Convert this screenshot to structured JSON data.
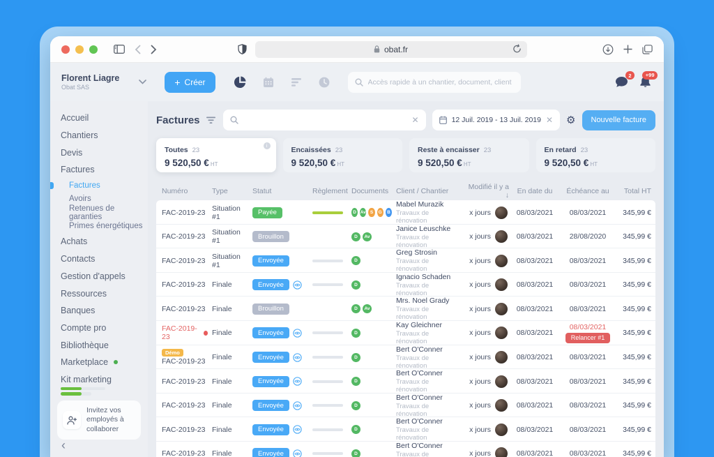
{
  "browser": {
    "url": "obat.fr"
  },
  "appbar": {
    "user_name": "Florent Liagre",
    "company": "Obat SAS",
    "create_plus": "+",
    "create_label": "Créer",
    "search_placeholder": "Accès rapide à un chantier, document, client ...",
    "chat_badge": "2",
    "bell_badge": "+99"
  },
  "sidebar": {
    "items": [
      {
        "label": "Accueil"
      },
      {
        "label": "Chantiers"
      },
      {
        "label": "Devis"
      },
      {
        "label": "Factures"
      },
      {
        "label": "Factures",
        "sub": true,
        "active": true
      },
      {
        "label": "Avoirs",
        "sub": true
      },
      {
        "label": "Retenues de garanties",
        "sub": true
      },
      {
        "label": "Primes énergétiques",
        "sub": true
      },
      {
        "label": "Achats"
      },
      {
        "label": "Contacts"
      },
      {
        "label": "Gestion d'appels"
      },
      {
        "label": "Ressources"
      },
      {
        "label": "Banques"
      },
      {
        "label": "Compte pro"
      },
      {
        "label": "Bibliothèque"
      },
      {
        "label": "Marketplace",
        "dot": true
      },
      {
        "label": "Kit marketing",
        "progress": true
      }
    ],
    "invite_text": "Invitez vos employés à collaborer"
  },
  "header": {
    "title": "Factures",
    "date_range": "12 Juil. 2019 - 13 Juil. 2019",
    "new_button": "Nouvelle facture"
  },
  "cards": [
    {
      "label": "Toutes",
      "count": "23",
      "amount": "9 520,50 €",
      "unit": "HT",
      "active": true
    },
    {
      "label": "Encaissées",
      "count": "23",
      "amount": "9 520,50 €",
      "unit": "HT"
    },
    {
      "label": "Reste à encaisser",
      "count": "23",
      "amount": "9 520,50 €",
      "unit": "HT"
    },
    {
      "label": "En retard",
      "count": "23",
      "amount": "9 520,50 €",
      "unit": "HT"
    }
  ],
  "table": {
    "headers": [
      "Numéro",
      "Type",
      "Statut",
      "Règlement",
      "Documents",
      "Client / Chantier",
      "Modifié il y a",
      "En date du",
      "Échéance au",
      "Total HT"
    ],
    "sort_index": 6,
    "sort_arrow": "↓",
    "rows": [
      {
        "numero": "FAC-2019-23",
        "type": "Situation #1",
        "status": "Payée",
        "status_color": "green",
        "eye": false,
        "progress": "green",
        "documents": [
          {
            "t": "D",
            "c": "green"
          },
          {
            "t": "Av",
            "c": "green"
          },
          {
            "t": "S",
            "c": "orange"
          },
          {
            "t": "G",
            "c": "orange"
          },
          {
            "t": "B",
            "c": "blue"
          }
        ],
        "client": "Mabel Murazik",
        "project": "Travaux de rénovation",
        "modified": "x jours",
        "date": "08/03/2021",
        "due": "08/03/2021",
        "total": "345,99 €"
      },
      {
        "numero": "FAC-2019-23",
        "type": "Situation #1",
        "status": "Brouillon",
        "status_color": "gray",
        "eye": false,
        "progress": "none",
        "documents": [
          {
            "t": "D",
            "c": "green"
          },
          {
            "t": "Av",
            "c": "green"
          }
        ],
        "client": "Janice Leuschke",
        "project": "Travaux de rénovation",
        "modified": "x jours",
        "date": "08/03/2021",
        "due": "28/08/2020",
        "total": "345,99 €"
      },
      {
        "numero": "FAC-2019-23",
        "type": "Situation #1",
        "status": "Envoyée",
        "status_color": "blue",
        "eye": false,
        "progress": "gray",
        "documents": [
          {
            "t": "D",
            "c": "green"
          }
        ],
        "client": "Greg Strosin",
        "project": "Travaux de rénovation",
        "modified": "x jours",
        "date": "08/03/2021",
        "due": "08/03/2021",
        "total": "345,99 €"
      },
      {
        "numero": "FAC-2019-23",
        "type": "Finale",
        "status": "Envoyée",
        "status_color": "blue",
        "eye": true,
        "progress": "gray",
        "documents": [
          {
            "t": "D",
            "c": "green"
          }
        ],
        "client": "Ignacio Schaden",
        "project": "Travaux de rénovation",
        "modified": "x jours",
        "date": "08/03/2021",
        "due": "08/03/2021",
        "total": "345,99 €"
      },
      {
        "numero": "FAC-2019-23",
        "type": "Finale",
        "status": "Brouillon",
        "status_color": "gray",
        "eye": false,
        "progress": "none",
        "documents": [
          {
            "t": "D",
            "c": "green"
          },
          {
            "t": "Av",
            "c": "green"
          }
        ],
        "client": "Mrs. Noel Grady",
        "project": "Travaux de rénovation",
        "modified": "x jours",
        "date": "08/03/2021",
        "due": "08/03/2021",
        "total": "345,99 €"
      },
      {
        "numero": "FAC-2019-23",
        "numero_red": true,
        "alert_dot": true,
        "type": "Finale",
        "status": "Envoyée",
        "status_color": "blue",
        "eye": true,
        "progress": "gray",
        "documents": [
          {
            "t": "D",
            "c": "green"
          }
        ],
        "client": "Kay Gleichner",
        "project": "Travaux de rénovation",
        "modified": "x jours",
        "date": "08/03/2021",
        "due": "08/03/2021",
        "due_red": true,
        "relance": "Relancer #1",
        "total": "345,99 €"
      },
      {
        "numero": "FAC-2019-23",
        "demo": "Démo",
        "type": "Finale",
        "status": "Envoyée",
        "status_color": "blue",
        "eye": true,
        "progress": "gray",
        "documents": [
          {
            "t": "D",
            "c": "green"
          }
        ],
        "client": "Bert O'Conner",
        "project": "Travaux de rénovation",
        "modified": "x jours",
        "date": "08/03/2021",
        "due": "08/03/2021",
        "total": "345,99 €"
      },
      {
        "numero": "FAC-2019-23",
        "type": "Finale",
        "status": "Envoyée",
        "status_color": "blue",
        "eye": true,
        "progress": "gray",
        "documents": [
          {
            "t": "D",
            "c": "green"
          }
        ],
        "client": "Bert O'Conner",
        "project": "Travaux de rénovation",
        "modified": "x jours",
        "date": "08/03/2021",
        "due": "08/03/2021",
        "total": "345,99 €"
      },
      {
        "numero": "FAC-2019-23",
        "type": "Finale",
        "status": "Envoyée",
        "status_color": "blue",
        "eye": true,
        "progress": "gray",
        "documents": [
          {
            "t": "D",
            "c": "green"
          }
        ],
        "client": "Bert O'Conner",
        "project": "Travaux de rénovation",
        "modified": "x jours",
        "date": "08/03/2021",
        "due": "08/03/2021",
        "total": "345,99 €"
      },
      {
        "numero": "FAC-2019-23",
        "type": "Finale",
        "status": "Envoyée",
        "status_color": "blue",
        "eye": true,
        "progress": "gray",
        "documents": [
          {
            "t": "D",
            "c": "green"
          }
        ],
        "client": "Bert O'Conner",
        "project": "Travaux de rénovation",
        "modified": "x jours",
        "date": "08/03/2021",
        "due": "08/03/2021",
        "total": "345,99 €"
      },
      {
        "numero": "FAC-2019-23",
        "type": "Finale",
        "status": "Envoyée",
        "status_color": "blue",
        "eye": true,
        "progress": "gray",
        "documents": [
          {
            "t": "D",
            "c": "green"
          }
        ],
        "client": "Bert O'Conner",
        "project": "Travaux de rénovation",
        "modified": "x jours",
        "date": "08/03/2021",
        "due": "08/03/2021",
        "total": "345,99 €"
      }
    ]
  },
  "colors": {
    "accent": "#42a5f5",
    "status_green": "#57c068",
    "status_gray": "#b4bbcb",
    "status_blue": "#49a9f6",
    "doc_green": "#53b863",
    "doc_orange": "#f2a444",
    "doc_blue": "#4296f0",
    "progress_green": "#a9ce3b",
    "alert_red": "#e15f5f",
    "demo_yellow": "#f4b84a"
  }
}
